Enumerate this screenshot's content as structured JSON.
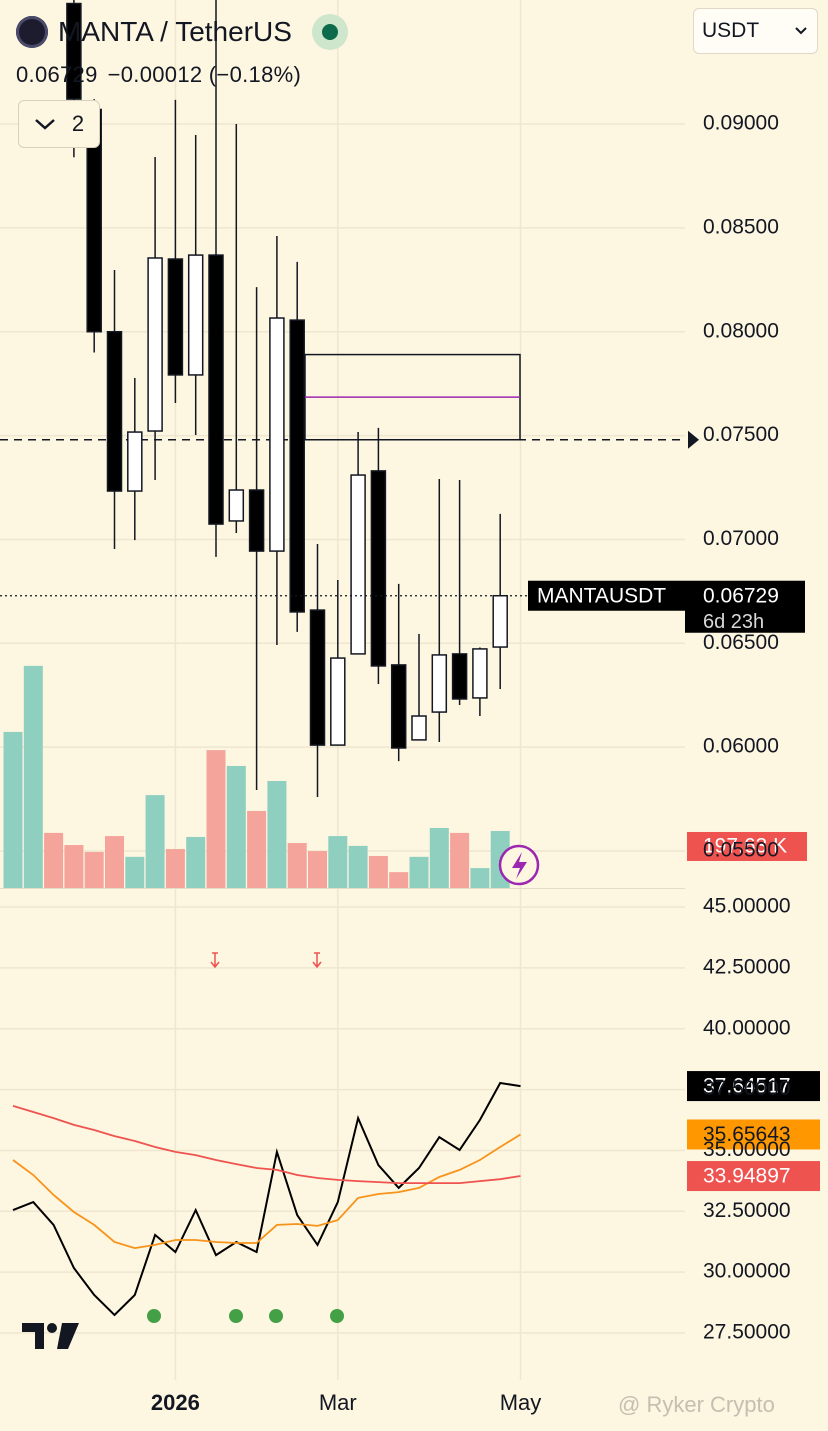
{
  "header": {
    "symbol": "MANTA / TetherUS",
    "change": "−0.00012 (−0.18%)",
    "indicators": 2,
    "currency": "USDT",
    "symbol_badge": "MANTAUSDT",
    "countdown": "6d 23h",
    "watermark": "@ Ryker Crypto"
  },
  "chart_data": [
    {
      "type": "candlestick",
      "categories": [
        null,
        null,
        null,
        null,
        null,
        null,
        null,
        null,
        "2026",
        null,
        null,
        null,
        null,
        null,
        null,
        null,
        "Mar",
        null,
        null,
        null,
        null,
        null,
        null,
        null,
        null,
        "May"
      ],
      "open": [
        null,
        null,
        null,
        0.0958,
        0.0907,
        0.08,
        0.07233,
        0.07522,
        0.0835,
        0.07792,
        0.08369,
        0.07089,
        0.07238,
        0.06944,
        0.08056,
        0.0666,
        0.0601,
        0.06449,
        0.0733,
        0.06396,
        0.06035,
        0.06169,
        0.06449,
        0.06237,
        0.06482,
        null
      ],
      "high": [
        null,
        null,
        null,
        0.096,
        0.0912,
        0.08297,
        0.07777,
        0.08841,
        0.09116,
        0.08947,
        0.096,
        0.09,
        0.08215,
        0.08461,
        0.08336,
        0.06978,
        0.06805,
        0.07517,
        0.07537,
        0.06786,
        0.06545,
        0.07291,
        0.07286,
        0.0648,
        0.07123,
        null
      ],
      "low": [
        null,
        null,
        null,
        0.0884,
        0.079,
        0.06954,
        0.06997,
        0.07286,
        0.07657,
        0.07503,
        0.06916,
        0.07031,
        0.05794,
        0.06492,
        0.06555,
        0.0576,
        0.0601,
        0.06449,
        0.06304,
        0.05933,
        0.06035,
        0.06025,
        0.06203,
        0.0615,
        0.0628,
        null
      ],
      "close": [
        null,
        null,
        null,
        0.0912,
        0.08,
        0.07233,
        0.07517,
        0.08355,
        0.07792,
        0.08369,
        0.07074,
        0.07238,
        0.06944,
        0.08066,
        0.06651,
        0.0601,
        0.06429,
        0.0731,
        0.06391,
        0.05996,
        0.0615,
        0.06444,
        0.06232,
        0.06473,
        0.06729,
        null
      ],
      "up_color": "#ffffff",
      "down_color": "#000000",
      "ylim": [
        0.05322,
        0.09597
      ],
      "yticks": [
        {
          "value": 0.09,
          "label": "0.09000"
        },
        {
          "value": 0.085,
          "label": "0.08500"
        },
        {
          "value": 0.08,
          "label": "0.08000"
        },
        {
          "value": 0.075,
          "label": "0.07500"
        },
        {
          "value": 0.07,
          "label": "0.07000"
        },
        {
          "value": 0.065,
          "label": "0.06500"
        },
        {
          "value": 0.06,
          "label": "0.06000"
        },
        {
          "value": 0.055,
          "label": "0.05500"
        }
      ],
      "level": 0.0748,
      "zone": {
        "low": 0.0748,
        "high": 0.0789,
        "mid": 0.07685
      },
      "grid": true
    },
    {
      "type": "bar",
      "values": [
        541,
        770,
        191,
        149,
        125,
        180,
        108,
        322,
        135,
        177,
        478,
        423,
        267,
        371,
        156,
        128,
        180,
        146,
        111,
        55,
        108,
        208,
        191,
        69,
        197.63,
        null
      ],
      "value_labels": [
        null,
        null,
        null,
        null,
        null,
        null,
        null,
        null,
        null,
        null,
        null,
        null,
        null,
        null,
        null,
        null,
        null,
        null,
        null,
        null,
        null,
        null,
        null,
        null,
        "197.63 K",
        null
      ],
      "colors": [
        "#8fcfc0",
        "#8fcfc0",
        "#f4a49b",
        "#f4a49b",
        "#f4a49b",
        "#f4a49b",
        "#8fcfc0",
        "#8fcfc0",
        "#f4a49b",
        "#8fcfc0",
        "#f4a49b",
        "#8fcfc0",
        "#f4a49b",
        "#8fcfc0",
        "#f4a49b",
        "#f4a49b",
        "#8fcfc0",
        "#8fcfc0",
        "#f4a49b",
        "#f4a49b",
        "#8fcfc0",
        "#8fcfc0",
        "#f4a49b",
        "#8fcfc0",
        "#8fcfc0",
        "#8fcfc0"
      ],
      "badge_color": "#ef5350",
      "ylim": [
        0,
        3078
      ]
    },
    {
      "type": "line",
      "series": [
        {
          "name": "RSI",
          "color": "#000000",
          "values": [
            32.55,
            32.88,
            31.94,
            30.17,
            29.06,
            28.24,
            29.06,
            31.53,
            30.83,
            32.55,
            30.7,
            31.24,
            30.83,
            34.94,
            32.35,
            31.12,
            32.88,
            36.33,
            34.4,
            33.46,
            34.28,
            35.55,
            35.02,
            36.25,
            37.77,
            37.64517
          ]
        },
        {
          "name": "MA fast",
          "color": "#f7931a",
          "values": [
            34.61,
            33.99,
            33.17,
            32.47,
            31.94,
            31.24,
            30.99,
            31.12,
            31.32,
            31.32,
            31.24,
            31.2,
            31.2,
            31.94,
            31.98,
            31.9,
            32.14,
            33.05,
            33.21,
            33.29,
            33.46,
            33.91,
            34.2,
            34.61,
            35.14,
            35.65643
          ]
        },
        {
          "name": "MA slow",
          "color": "#ef5350",
          "values": [
            36.83,
            36.58,
            36.33,
            36.05,
            35.84,
            35.59,
            35.39,
            35.14,
            34.94,
            34.81,
            34.61,
            34.44,
            34.28,
            34.2,
            33.99,
            33.87,
            33.79,
            33.74,
            33.7,
            33.66,
            33.66,
            33.66,
            33.66,
            33.74,
            33.82,
            33.94897
          ]
        }
      ],
      "ylim": [
        25.57,
        45.7
      ],
      "yticks": [
        {
          "value": 45,
          "label": "45.00000"
        },
        {
          "value": 42.5,
          "label": "42.50000"
        },
        {
          "value": 40,
          "label": "40.00000"
        },
        {
          "value": 37.5,
          "label": "37.50000"
        },
        {
          "value": 35,
          "label": "35.00000"
        },
        {
          "value": 32.5,
          "label": "32.50000"
        },
        {
          "value": 30,
          "label": "30.00000"
        },
        {
          "value": 27.5,
          "label": "27.50000"
        }
      ],
      "grid": true
    }
  ]
}
